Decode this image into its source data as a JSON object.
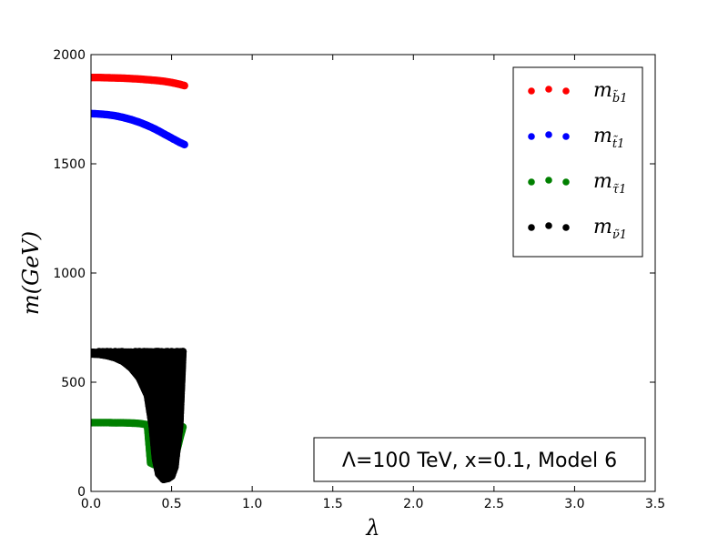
{
  "chart_data": {
    "type": "scatter",
    "xlabel": "λ",
    "ylabel": "m(GeV)",
    "xlim": [
      0,
      3.5
    ],
    "ylim": [
      0,
      2000
    ],
    "xticks": [
      "0.0",
      "0.5",
      "1.0",
      "1.5",
      "2.0",
      "2.5",
      "3.0",
      "3.5"
    ],
    "yticks": [
      "0",
      "500",
      "1000",
      "1500",
      "2000"
    ],
    "grid": false,
    "legend_position": "top-right",
    "annotation": "Λ=100 TeV, x=0.1, Model 6",
    "series": [
      {
        "name": "m_b̃1",
        "color": "#ff0000",
        "x": [
          0.0,
          0.05,
          0.1,
          0.15,
          0.2,
          0.25,
          0.3,
          0.35,
          0.4,
          0.45,
          0.5,
          0.55,
          0.58
        ],
        "y": [
          1895,
          1895,
          1894,
          1893,
          1892,
          1890,
          1888,
          1885,
          1882,
          1878,
          1872,
          1864,
          1858
        ]
      },
      {
        "name": "m_t̃1",
        "color": "#0000ff",
        "x": [
          0.0,
          0.05,
          0.1,
          0.15,
          0.2,
          0.25,
          0.3,
          0.35,
          0.4,
          0.45,
          0.5,
          0.55,
          0.58
        ],
        "y": [
          1730,
          1728,
          1725,
          1720,
          1712,
          1702,
          1690,
          1675,
          1658,
          1638,
          1618,
          1598,
          1588
        ]
      },
      {
        "name": "m_τ̃1",
        "color": "#008000",
        "x": [
          0.0,
          0.05,
          0.1,
          0.15,
          0.2,
          0.25,
          0.3,
          0.35,
          0.37,
          0.4,
          0.42,
          0.45,
          0.48,
          0.5,
          0.53,
          0.55,
          0.57
        ],
        "y": [
          315,
          315,
          315,
          314,
          314,
          313,
          311,
          305,
          130,
          120,
          110,
          100,
          115,
          135,
          180,
          240,
          295
        ]
      },
      {
        "name": "m_ν̃1",
        "color": "#000000",
        "x": [
          0.0,
          0.05,
          0.1,
          0.15,
          0.2,
          0.25,
          0.3,
          0.35,
          0.38,
          0.4,
          0.42,
          0.45,
          0.48,
          0.5,
          0.52,
          0.55,
          0.57
        ],
        "y": [
          630,
          628,
          622,
          612,
          595,
          565,
          520,
          440,
          300,
          150,
          80,
          55,
          60,
          70,
          110,
          300,
          640
        ]
      }
    ]
  }
}
